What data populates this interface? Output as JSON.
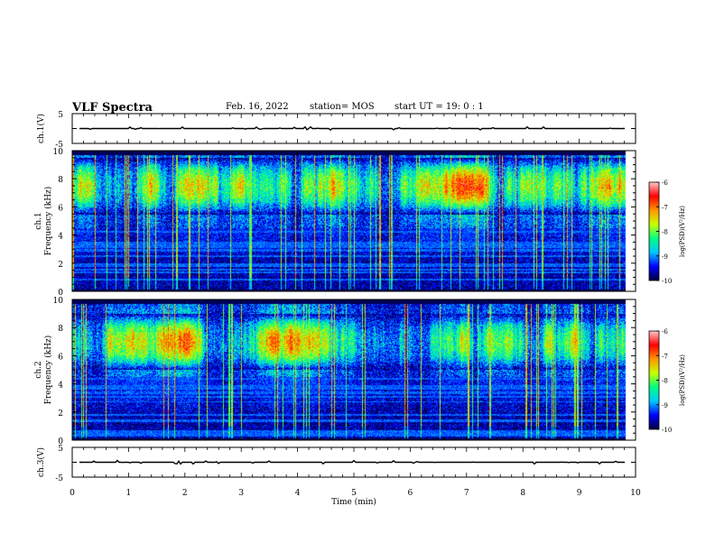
{
  "header": {
    "title": "VLF Spectra",
    "date": "Feb. 16, 2022",
    "station": "station= MOS",
    "start_ut": "start  UT =   19: 0  : 1"
  },
  "chart_data": [
    {
      "type": "line",
      "panel": "ch1-voltage",
      "ylabel": "ch.1(V)",
      "yticks": [
        "5",
        "-5"
      ],
      "ylim": [
        -5,
        5
      ],
      "xlim": [
        0,
        10
      ],
      "series": [
        {
          "name": "ch.1 voltage",
          "value": 0
        }
      ],
      "color": "#000000"
    },
    {
      "type": "heatmap",
      "panel": "ch1-spectrogram",
      "ylabel_line1": "ch.1",
      "ylabel_line2": "Frequency (kHz)",
      "yticks": [
        "0",
        "2",
        "4",
        "6",
        "8",
        "10"
      ],
      "ylim": [
        0,
        10
      ],
      "xlim": [
        0,
        10
      ],
      "colorbar": {
        "label": "log(PSD)(V²/Hz)",
        "ticks": [
          "-6",
          "-7",
          "-8",
          "-9",
          "-10"
        ],
        "range": [
          -10,
          -6
        ]
      },
      "band_khz": [
        5.5,
        9.5
      ],
      "colors": [
        "#00003c",
        "#0000ff",
        "#00c8ff",
        "#00ff80",
        "#c8ff00",
        "#ff9600",
        "#ff0000",
        "#ffc8c8"
      ]
    },
    {
      "type": "heatmap",
      "panel": "ch2-spectrogram",
      "ylabel_line1": "ch.2",
      "ylabel_line2": "Frequency (kHz)",
      "yticks": [
        "0",
        "2",
        "4",
        "6",
        "8",
        "10"
      ],
      "ylim": [
        0,
        10
      ],
      "xlim": [
        0,
        10
      ],
      "colorbar": {
        "label": "log(PSD)(V²/Hz)",
        "ticks": [
          "-6",
          "-7",
          "-8",
          "-9",
          "-10"
        ],
        "range": [
          -10,
          -6
        ]
      },
      "band_khz": [
        5.0,
        9.0
      ],
      "colors": [
        "#00003c",
        "#0000ff",
        "#00c8ff",
        "#00ff80",
        "#c8ff00",
        "#ff9600",
        "#ff0000",
        "#ffc8c8"
      ]
    },
    {
      "type": "line",
      "panel": "ch3-voltage",
      "ylabel": "ch.3(V)",
      "yticks": [
        "5",
        "-5"
      ],
      "ylim": [
        -5,
        5
      ],
      "xlim": [
        0,
        10
      ],
      "series": [
        {
          "name": "ch.3 voltage",
          "value": 0
        }
      ],
      "color": "#000000"
    }
  ],
  "x_axis": {
    "label": "Time  (min)",
    "ticks": [
      "0",
      "1",
      "2",
      "3",
      "4",
      "5",
      "6",
      "7",
      "8",
      "9",
      "10"
    ],
    "range": [
      0,
      10
    ],
    "data_end": 9.83
  }
}
